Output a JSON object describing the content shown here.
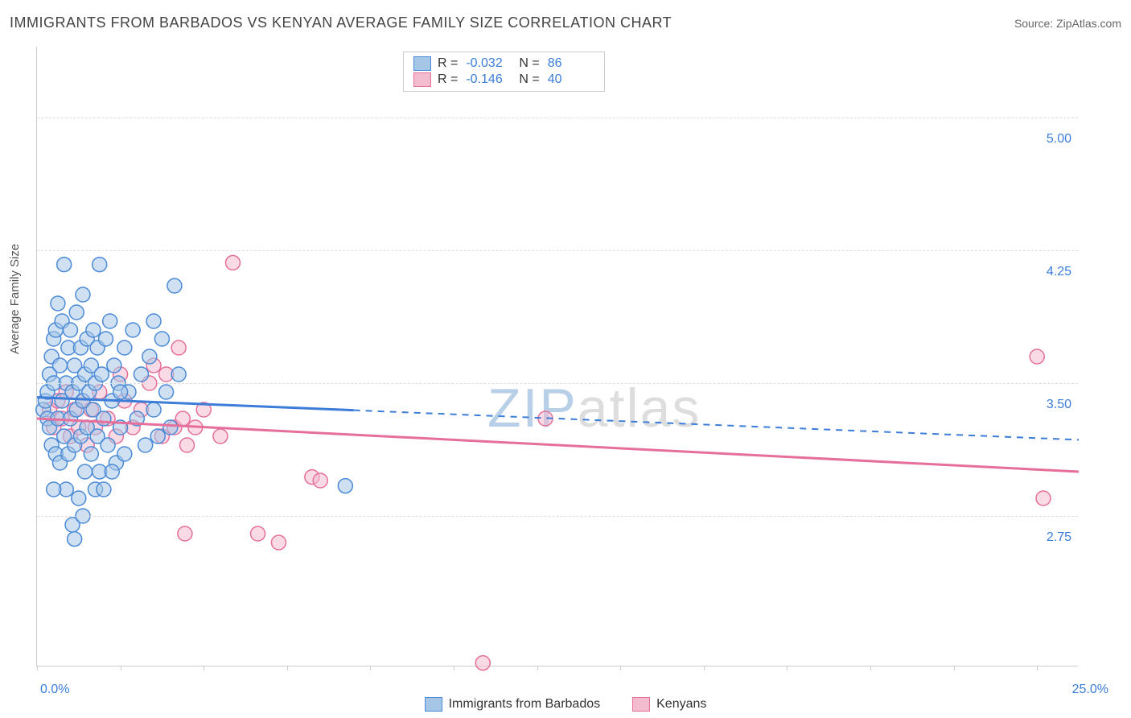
{
  "title": "IMMIGRANTS FROM BARBADOS VS KENYAN AVERAGE FAMILY SIZE CORRELATION CHART",
  "source_label": "Source: ZipAtlas.com",
  "watermark": {
    "zip": "ZIP",
    "atlas": "atlas"
  },
  "ylabel": "Average Family Size",
  "xaxis": {
    "min": 0.0,
    "max": 25.0,
    "ticks_at": [
      0.0,
      2.0,
      4.0,
      6.0,
      8.0,
      10.0,
      12.0,
      14.0,
      16.0,
      18.0,
      20.0,
      22.0,
      24.0
    ],
    "label_min": "0.0%",
    "label_max": "25.0%"
  },
  "yaxis": {
    "min": 1.9,
    "max": 5.4,
    "gridlines": [
      2.75,
      3.5,
      4.25,
      5.0
    ],
    "tick_labels": [
      "2.75",
      "3.50",
      "4.25",
      "5.00"
    ]
  },
  "colors": {
    "series1_fill": "#a6c6e7",
    "series1_stroke": "#4b8ad6",
    "series2_fill": "#f4bccf",
    "series2_stroke": "#e56f9a",
    "trend1": "#3b7dd8",
    "trend2": "#e56f9a",
    "grid": "#dddddd",
    "axis": "#cccccc",
    "tick_text": "#3b7dd8",
    "title_text": "#444444",
    "background": "#ffffff"
  },
  "marker": {
    "radius": 9,
    "stroke_width": 1.5,
    "fill_opacity": 0.55
  },
  "series1": {
    "label": "Immigrants from Barbados",
    "R": "-0.032",
    "N": "86",
    "trend": {
      "y_at_xmin": 3.42,
      "y_at_xmax": 3.18,
      "solid_until_x": 7.6
    },
    "points": [
      [
        0.15,
        3.35
      ],
      [
        0.2,
        3.4
      ],
      [
        0.25,
        3.3
      ],
      [
        0.25,
        3.45
      ],
      [
        0.3,
        3.55
      ],
      [
        0.3,
        3.25
      ],
      [
        0.35,
        3.65
      ],
      [
        0.35,
        3.15
      ],
      [
        0.4,
        3.75
      ],
      [
        0.4,
        3.5
      ],
      [
        0.45,
        3.1
      ],
      [
        0.45,
        3.8
      ],
      [
        0.5,
        3.3
      ],
      [
        0.5,
        3.95
      ],
      [
        0.55,
        3.6
      ],
      [
        0.55,
        3.05
      ],
      [
        0.6,
        3.4
      ],
      [
        0.6,
        3.85
      ],
      [
        0.65,
        3.2
      ],
      [
        0.65,
        4.17
      ],
      [
        0.7,
        3.5
      ],
      [
        0.7,
        2.9
      ],
      [
        0.75,
        3.7
      ],
      [
        0.75,
        3.1
      ],
      [
        0.8,
        3.3
      ],
      [
        0.8,
        3.8
      ],
      [
        0.85,
        3.45
      ],
      [
        0.85,
        2.7
      ],
      [
        0.9,
        3.6
      ],
      [
        0.9,
        3.15
      ],
      [
        0.95,
        3.9
      ],
      [
        0.95,
        3.35
      ],
      [
        1.0,
        3.5
      ],
      [
        1.0,
        2.85
      ],
      [
        1.05,
        3.7
      ],
      [
        1.05,
        3.2
      ],
      [
        1.1,
        3.4
      ],
      [
        1.1,
        4.0
      ],
      [
        1.15,
        3.55
      ],
      [
        1.15,
        3.0
      ],
      [
        1.2,
        3.75
      ],
      [
        1.2,
        3.25
      ],
      [
        1.25,
        3.45
      ],
      [
        1.3,
        3.6
      ],
      [
        1.3,
        3.1
      ],
      [
        1.35,
        3.8
      ],
      [
        1.35,
        3.35
      ],
      [
        1.4,
        3.5
      ],
      [
        1.4,
        2.9
      ],
      [
        1.45,
        3.7
      ],
      [
        1.45,
        3.2
      ],
      [
        1.5,
        4.17
      ],
      [
        1.5,
        3.0
      ],
      [
        1.55,
        3.55
      ],
      [
        1.6,
        3.3
      ],
      [
        1.65,
        3.75
      ],
      [
        1.7,
        3.15
      ],
      [
        1.75,
        3.85
      ],
      [
        1.8,
        3.4
      ],
      [
        1.85,
        3.6
      ],
      [
        1.9,
        3.05
      ],
      [
        1.95,
        3.5
      ],
      [
        2.0,
        3.25
      ],
      [
        2.1,
        3.7
      ],
      [
        2.1,
        3.1
      ],
      [
        2.2,
        3.45
      ],
      [
        2.3,
        3.8
      ],
      [
        2.4,
        3.3
      ],
      [
        2.5,
        3.55
      ],
      [
        2.6,
        3.15
      ],
      [
        2.7,
        3.65
      ],
      [
        2.8,
        3.35
      ],
      [
        2.9,
        3.2
      ],
      [
        3.0,
        3.75
      ],
      [
        3.1,
        3.45
      ],
      [
        3.2,
        3.25
      ],
      [
        3.3,
        4.05
      ],
      [
        3.4,
        3.55
      ],
      [
        0.9,
        2.62
      ],
      [
        0.4,
        2.9
      ],
      [
        1.1,
        2.75
      ],
      [
        1.6,
        2.9
      ],
      [
        2.0,
        3.45
      ],
      [
        2.8,
        3.85
      ],
      [
        7.4,
        2.92
      ],
      [
        1.8,
        3.0
      ]
    ]
  },
  "series2": {
    "label": "Kenyans",
    "R": "-0.146",
    "N": "40",
    "trend": {
      "y_at_xmin": 3.3,
      "y_at_xmax": 3.0
    },
    "points": [
      [
        0.3,
        3.35
      ],
      [
        0.4,
        3.25
      ],
      [
        0.5,
        3.4
      ],
      [
        0.6,
        3.3
      ],
      [
        0.7,
        3.45
      ],
      [
        0.8,
        3.2
      ],
      [
        0.9,
        3.35
      ],
      [
        1.0,
        3.25
      ],
      [
        1.1,
        3.4
      ],
      [
        1.2,
        3.15
      ],
      [
        1.3,
        3.35
      ],
      [
        1.4,
        3.25
      ],
      [
        1.5,
        3.45
      ],
      [
        1.7,
        3.3
      ],
      [
        1.9,
        3.2
      ],
      [
        2.1,
        3.4
      ],
      [
        2.3,
        3.25
      ],
      [
        2.5,
        3.35
      ],
      [
        2.7,
        3.5
      ],
      [
        2.8,
        3.6
      ],
      [
        3.0,
        3.2
      ],
      [
        3.1,
        3.55
      ],
      [
        3.3,
        3.25
      ],
      [
        3.4,
        3.7
      ],
      [
        3.5,
        3.3
      ],
      [
        3.6,
        3.15
      ],
      [
        3.8,
        3.25
      ],
      [
        4.0,
        3.35
      ],
      [
        4.4,
        3.2
      ],
      [
        4.7,
        4.18
      ],
      [
        5.3,
        2.65
      ],
      [
        5.8,
        2.6
      ],
      [
        6.6,
        2.97
      ],
      [
        6.8,
        2.95
      ],
      [
        12.2,
        3.3
      ],
      [
        3.55,
        2.65
      ],
      [
        24.0,
        3.65
      ],
      [
        24.15,
        2.85
      ],
      [
        10.7,
        1.92
      ],
      [
        2.0,
        3.55
      ]
    ]
  },
  "legend_top": {
    "R_label": "R =",
    "N_label": "N ="
  }
}
